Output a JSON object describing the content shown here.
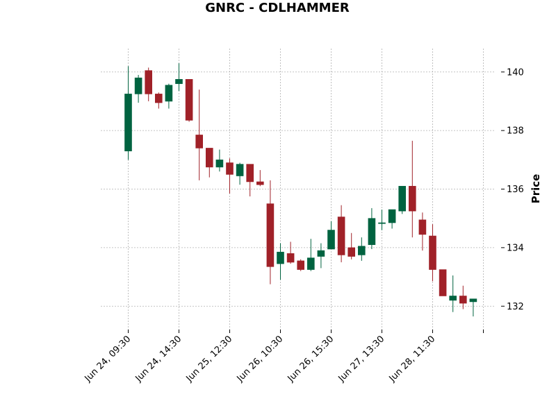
{
  "chart_data": {
    "type": "candlestick",
    "title": "GNRC - CDLHAMMER",
    "ylabel": "Price",
    "xlabel": "",
    "ylim": [
      131.2,
      140.8
    ],
    "yticks": [
      132,
      134,
      136,
      138,
      140
    ],
    "grid": true,
    "colors": {
      "up": "#006340",
      "down": "#a02128"
    },
    "xtick_labels": [
      {
        "index": 0,
        "label": "Jun 24, 09:30"
      },
      {
        "index": 5,
        "label": "Jun 24, 14:30"
      },
      {
        "index": 10,
        "label": "Jun 25, 12:30"
      },
      {
        "index": 15,
        "label": "Jun 26, 10:30"
      },
      {
        "index": 20,
        "label": "Jun 26, 15:30"
      },
      {
        "index": 25,
        "label": "Jun 27, 13:30"
      },
      {
        "index": 30,
        "label": "Jun 28, 11:30"
      },
      {
        "index": 35,
        "label": ""
      }
    ],
    "candles": [
      {
        "open": 137.3,
        "high": 140.2,
        "low": 137.0,
        "close": 139.25
      },
      {
        "open": 139.25,
        "high": 139.9,
        "low": 138.95,
        "close": 139.8
      },
      {
        "open": 140.05,
        "high": 140.15,
        "low": 139.0,
        "close": 139.25
      },
      {
        "open": 139.25,
        "high": 139.3,
        "low": 138.75,
        "close": 138.95
      },
      {
        "open": 139.0,
        "high": 139.6,
        "low": 138.75,
        "close": 139.55
      },
      {
        "open": 139.6,
        "high": 140.3,
        "low": 139.35,
        "close": 139.75
      },
      {
        "open": 139.75,
        "high": 139.75,
        "low": 138.3,
        "close": 138.35
      },
      {
        "open": 137.85,
        "high": 139.4,
        "low": 136.3,
        "close": 137.4
      },
      {
        "open": 137.4,
        "high": 137.4,
        "low": 136.4,
        "close": 136.75
      },
      {
        "open": 136.75,
        "high": 137.35,
        "low": 136.6,
        "close": 137.0
      },
      {
        "open": 136.9,
        "high": 137.05,
        "low": 135.85,
        "close": 136.5
      },
      {
        "open": 136.45,
        "high": 136.9,
        "low": 136.15,
        "close": 136.85
      },
      {
        "open": 136.85,
        "high": 136.85,
        "low": 135.75,
        "close": 136.25
      },
      {
        "open": 136.25,
        "high": 136.65,
        "low": 136.1,
        "close": 136.15
      },
      {
        "open": 135.5,
        "high": 136.3,
        "low": 132.75,
        "close": 133.35
      },
      {
        "open": 133.45,
        "high": 134.15,
        "low": 132.9,
        "close": 133.85
      },
      {
        "open": 133.8,
        "high": 134.2,
        "low": 133.45,
        "close": 133.5
      },
      {
        "open": 133.55,
        "high": 133.6,
        "low": 133.2,
        "close": 133.25
      },
      {
        "open": 133.25,
        "high": 134.3,
        "low": 133.2,
        "close": 133.65
      },
      {
        "open": 133.7,
        "high": 134.15,
        "low": 133.3,
        "close": 133.9
      },
      {
        "open": 133.95,
        "high": 134.9,
        "low": 133.95,
        "close": 134.6
      },
      {
        "open": 135.05,
        "high": 135.45,
        "low": 133.5,
        "close": 133.75
      },
      {
        "open": 134.0,
        "high": 134.5,
        "low": 133.6,
        "close": 133.7
      },
      {
        "open": 133.75,
        "high": 134.35,
        "low": 133.55,
        "close": 134.05
      },
      {
        "open": 134.1,
        "high": 135.35,
        "low": 133.95,
        "close": 135.0
      },
      {
        "open": 134.85,
        "high": 135.3,
        "low": 134.6,
        "close": 134.85
      },
      {
        "open": 134.85,
        "high": 135.3,
        "low": 134.65,
        "close": 135.3
      },
      {
        "open": 135.25,
        "high": 136.1,
        "low": 135.15,
        "close": 136.1
      },
      {
        "open": 136.1,
        "high": 137.65,
        "low": 134.35,
        "close": 135.25
      },
      {
        "open": 134.95,
        "high": 135.2,
        "low": 133.9,
        "close": 134.45
      },
      {
        "open": 134.4,
        "high": 134.8,
        "low": 132.85,
        "close": 133.25
      },
      {
        "open": 133.25,
        "high": 133.25,
        "low": 132.35,
        "close": 132.35
      },
      {
        "open": 132.2,
        "high": 133.05,
        "low": 131.8,
        "close": 132.35
      },
      {
        "open": 132.35,
        "high": 132.7,
        "low": 131.9,
        "close": 132.1
      },
      {
        "open": 132.15,
        "high": 132.25,
        "low": 131.65,
        "close": 132.25
      }
    ]
  }
}
